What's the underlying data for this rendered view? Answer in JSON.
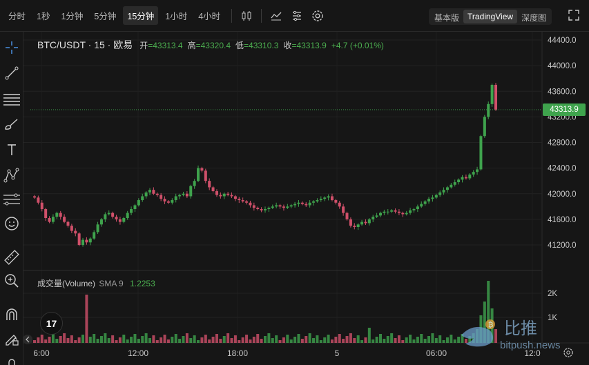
{
  "toolbar": {
    "timeframes": [
      "分时",
      "1秒",
      "1分钟",
      "5分钟",
      "15分钟",
      "1小时",
      "4小时"
    ],
    "active_timeframe": "15分钟",
    "views": [
      "基本版",
      "TradingView",
      "深度图"
    ],
    "active_view": "TradingView"
  },
  "legend": {
    "symbol": "BTC/USDT · 15 · 欧易",
    "open_label": "开",
    "open": "=43313.4",
    "high_label": "高",
    "high": "=43320.4",
    "low_label": "低",
    "low": "=43310.3",
    "close_label": "收",
    "close": "=43313.9",
    "change": "+4.7 (+0.01%)"
  },
  "volume_legend": {
    "name": "成交量(Volume)",
    "sma": "SMA 9",
    "value": "1.2253"
  },
  "price_axis": [
    "44400.0",
    "44000.0",
    "43600.0",
    "43200.0",
    "42800.0",
    "42400.0",
    "42000.0",
    "41600.0",
    "41200.0"
  ],
  "volume_axis": [
    "2K",
    "1K"
  ],
  "time_axis": [
    "6:00",
    "12:00",
    "18:00",
    "5",
    "06:00",
    "12:0"
  ],
  "last_price": "43313.9",
  "tv_logo": "17",
  "watermark": {
    "name": "比推",
    "url": "bitpush.news"
  },
  "colors": {
    "up": "#3fa34d",
    "down": "#d0506a",
    "background": "#161616"
  },
  "icons": {
    "sidebar": [
      "crosshair-icon",
      "trend-line-icon",
      "horizontal-lines-icon",
      "brush-icon",
      "text-icon",
      "pattern-icon",
      "fib-icon",
      "emoji-icon",
      "ruler-icon",
      "zoom-in-icon",
      "magnet-icon",
      "lock-pencil-icon",
      "lock-icon"
    ],
    "toolbar": [
      "candle-type-icon",
      "indicators-icon",
      "settings-list-icon",
      "gear-icon",
      "fullscreen-icon"
    ]
  }
}
